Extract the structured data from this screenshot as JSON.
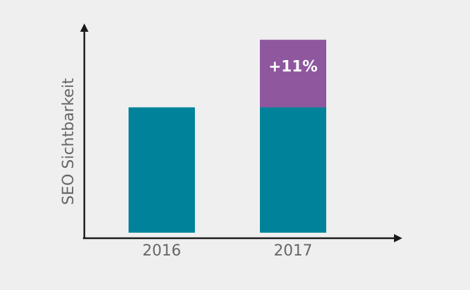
{
  "chart_data": {
    "type": "stacked-bar",
    "y_label": "SEO Sichtbarkeit",
    "categories": [
      "2016",
      "2017"
    ],
    "series": [
      {
        "color": "#00839a",
        "values": [
          20.4,
          20.4
        ]
      },
      {
        "color": "#8e579e",
        "values": [
          null,
          11
        ],
        "value_labels": [
          null,
          "+11%"
        ]
      }
    ],
    "ylim": [
      0,
      33.6
    ]
  }
}
